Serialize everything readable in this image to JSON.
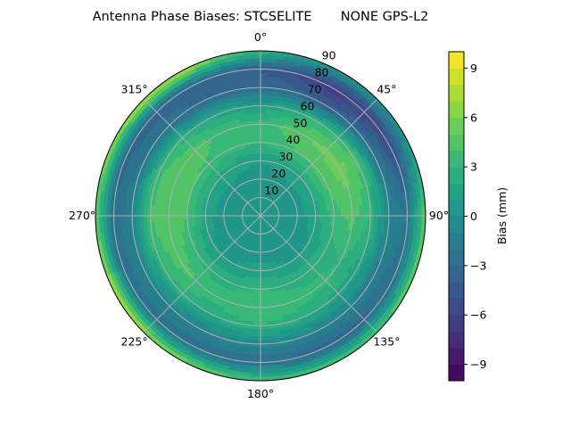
{
  "chart_data": {
    "type": "heatmap",
    "subtype": "polar-filled-contour",
    "title": "Antenna Phase Biases: STCSELITE       NONE GPS-L2",
    "angular_axis": {
      "direction": "clockwise",
      "zero_location": "top",
      "tick_labels": [
        "0°",
        "45°",
        "90°",
        "135°",
        "180°",
        "225°",
        "270°",
        "315°"
      ]
    },
    "radial_axis": {
      "range": [
        0,
        90
      ],
      "tick_labels": [
        "10",
        "20",
        "30",
        "40",
        "50",
        "60",
        "70",
        "80",
        "90"
      ]
    },
    "grid": true,
    "azimuth_deg": [
      0,
      30,
      60,
      90,
      120,
      150,
      180,
      210,
      240,
      270,
      300,
      330
    ],
    "zenith_deg": [
      0,
      10,
      20,
      30,
      40,
      50,
      60,
      70,
      80,
      90
    ],
    "values_mm": [
      [
        0,
        0,
        0,
        0,
        0,
        0,
        0,
        0,
        0,
        0,
        0,
        0
      ],
      [
        0.3,
        0.3,
        0.3,
        0.3,
        0.3,
        0.3,
        0.3,
        0.3,
        0.3,
        0.3,
        0.3,
        0.3
      ],
      [
        0.5,
        0.5,
        0.5,
        0.5,
        0.5,
        0.5,
        0.5,
        0.5,
        0.5,
        0.5,
        0.5,
        0.5
      ],
      [
        1,
        1.5,
        2,
        1.5,
        1,
        1,
        1.5,
        1,
        1,
        1.5,
        2,
        1.5
      ],
      [
        3,
        4,
        4.5,
        3.5,
        2.5,
        2.5,
        3,
        2.5,
        3,
        4,
        4,
        3.5
      ],
      [
        3.5,
        5,
        5.5,
        4.5,
        3,
        3.5,
        4,
        3.5,
        4.5,
        5,
        5,
        4
      ],
      [
        1,
        3,
        4,
        3,
        1.5,
        2,
        3,
        2,
        3,
        4,
        3.5,
        2
      ],
      [
        -3,
        -4,
        -2,
        -1,
        -1.5,
        -1,
        -0.5,
        -1,
        -1,
        -1,
        -2,
        -3
      ],
      [
        -4,
        -6.5,
        -5.5,
        -2,
        -3,
        -3.5,
        -3,
        -2.5,
        -3,
        -3,
        -3.5,
        -3.5
      ],
      [
        3,
        0,
        0,
        5,
        5,
        4,
        4,
        6,
        8,
        5,
        7,
        8
      ]
    ],
    "colorbar": {
      "label": "Bias (mm)",
      "range": [
        -10,
        10
      ],
      "level_step": 1,
      "colormap": "viridis",
      "tick_labels": [
        "−9",
        "−6",
        "−3",
        "0",
        "3",
        "6",
        "9"
      ],
      "tick_values": [
        -9,
        -6,
        -3,
        0,
        3,
        6,
        9
      ]
    }
  }
}
